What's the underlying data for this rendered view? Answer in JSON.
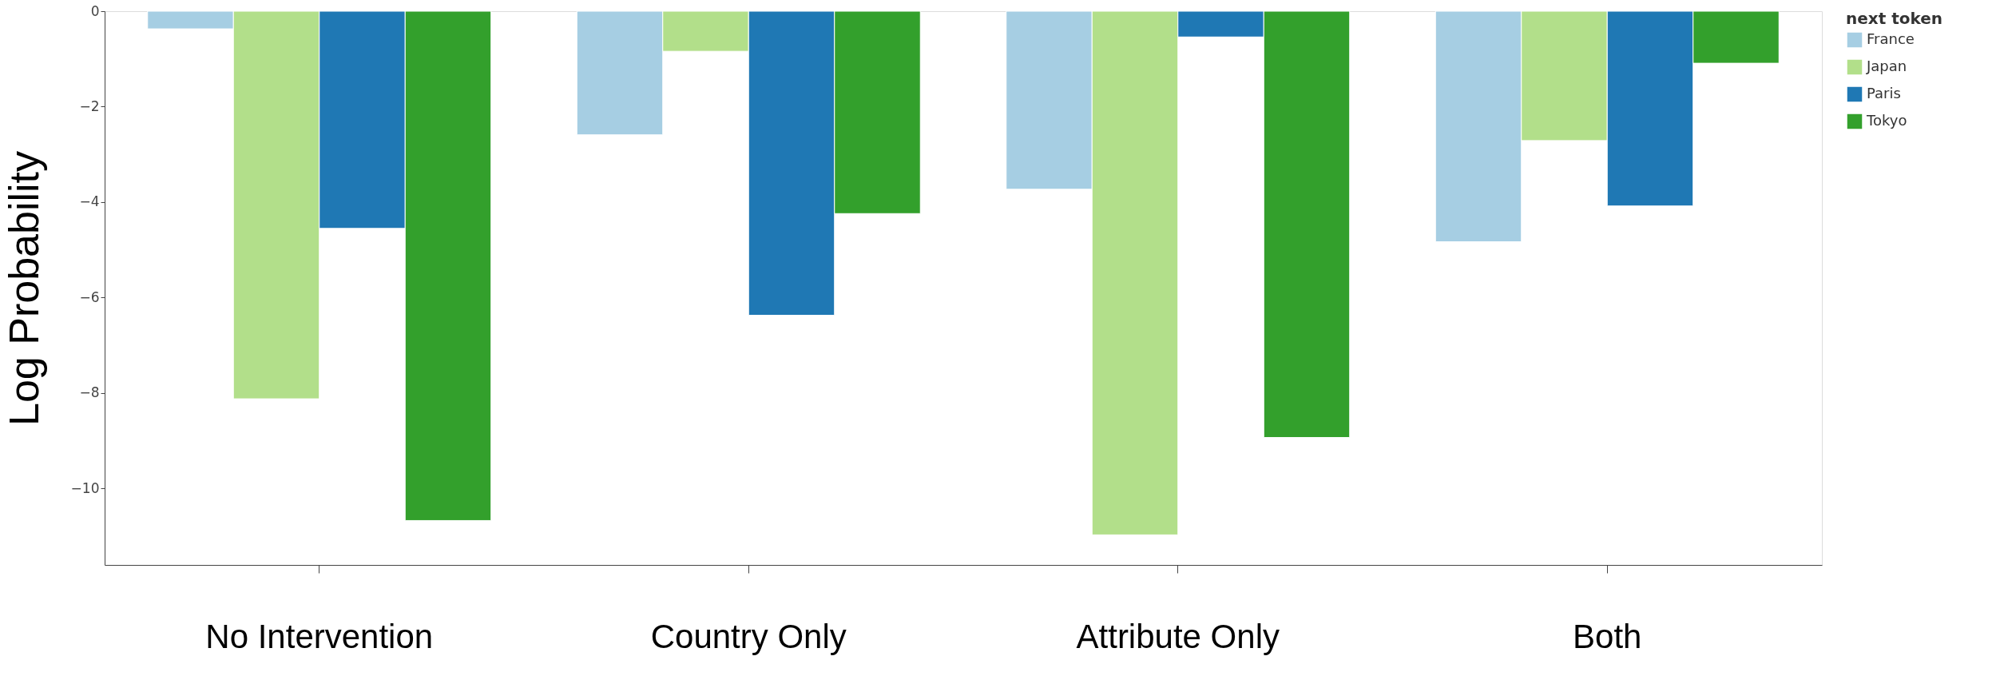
{
  "chart_data": {
    "type": "bar",
    "ylabel": "Log Probability",
    "legend_title": "next token",
    "categories": [
      "No Intervention",
      "Country Only",
      "Attribute Only",
      "Both"
    ],
    "series": [
      {
        "name": "France",
        "color": "#a6cee3",
        "values": [
          -0.37,
          -2.59,
          -3.73,
          -4.83
        ]
      },
      {
        "name": "Japan",
        "color": "#b2df8a",
        "values": [
          -8.12,
          -0.84,
          -10.97,
          -2.71
        ]
      },
      {
        "name": "Paris",
        "color": "#1f78b4",
        "values": [
          -4.55,
          -6.37,
          -0.54,
          -4.08
        ]
      },
      {
        "name": "Tokyo",
        "color": "#33a02c",
        "values": [
          -10.67,
          -4.24,
          -8.93,
          -1.09
        ]
      }
    ],
    "ylim": [
      -11.6,
      0
    ],
    "yticks": [
      0,
      -2,
      -4,
      -6,
      -8,
      -10
    ],
    "grid": false,
    "legend": "top right"
  }
}
